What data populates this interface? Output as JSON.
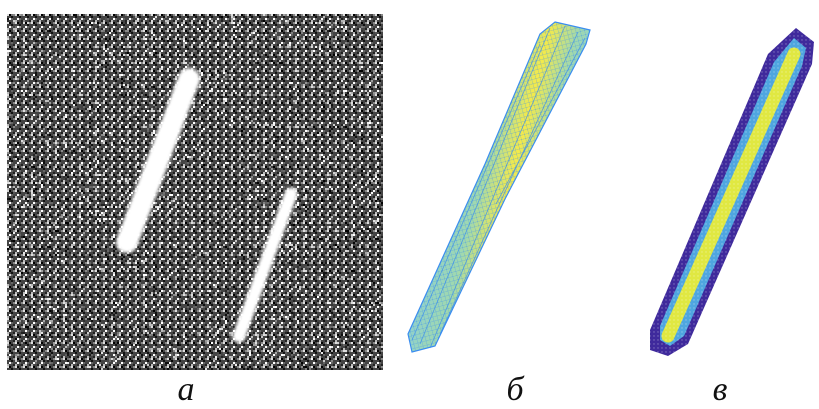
{
  "captions": {
    "a": "а",
    "b": "б",
    "c": "в"
  },
  "colors": {
    "noise_dark": "#111111",
    "noise_light": "#f2f2f2",
    "streak": "#ffffff",
    "mesh_edge": "#3a8df0",
    "mesh_fill_center": "#f4ea4a",
    "mesh_fill_mid": "#9fd8b0",
    "mesh_fill_outer": "#7fc8ee",
    "density_outer": "#3f2a9c",
    "density_mid": "#4fa6e0",
    "density_center": "#e8ec3a"
  }
}
